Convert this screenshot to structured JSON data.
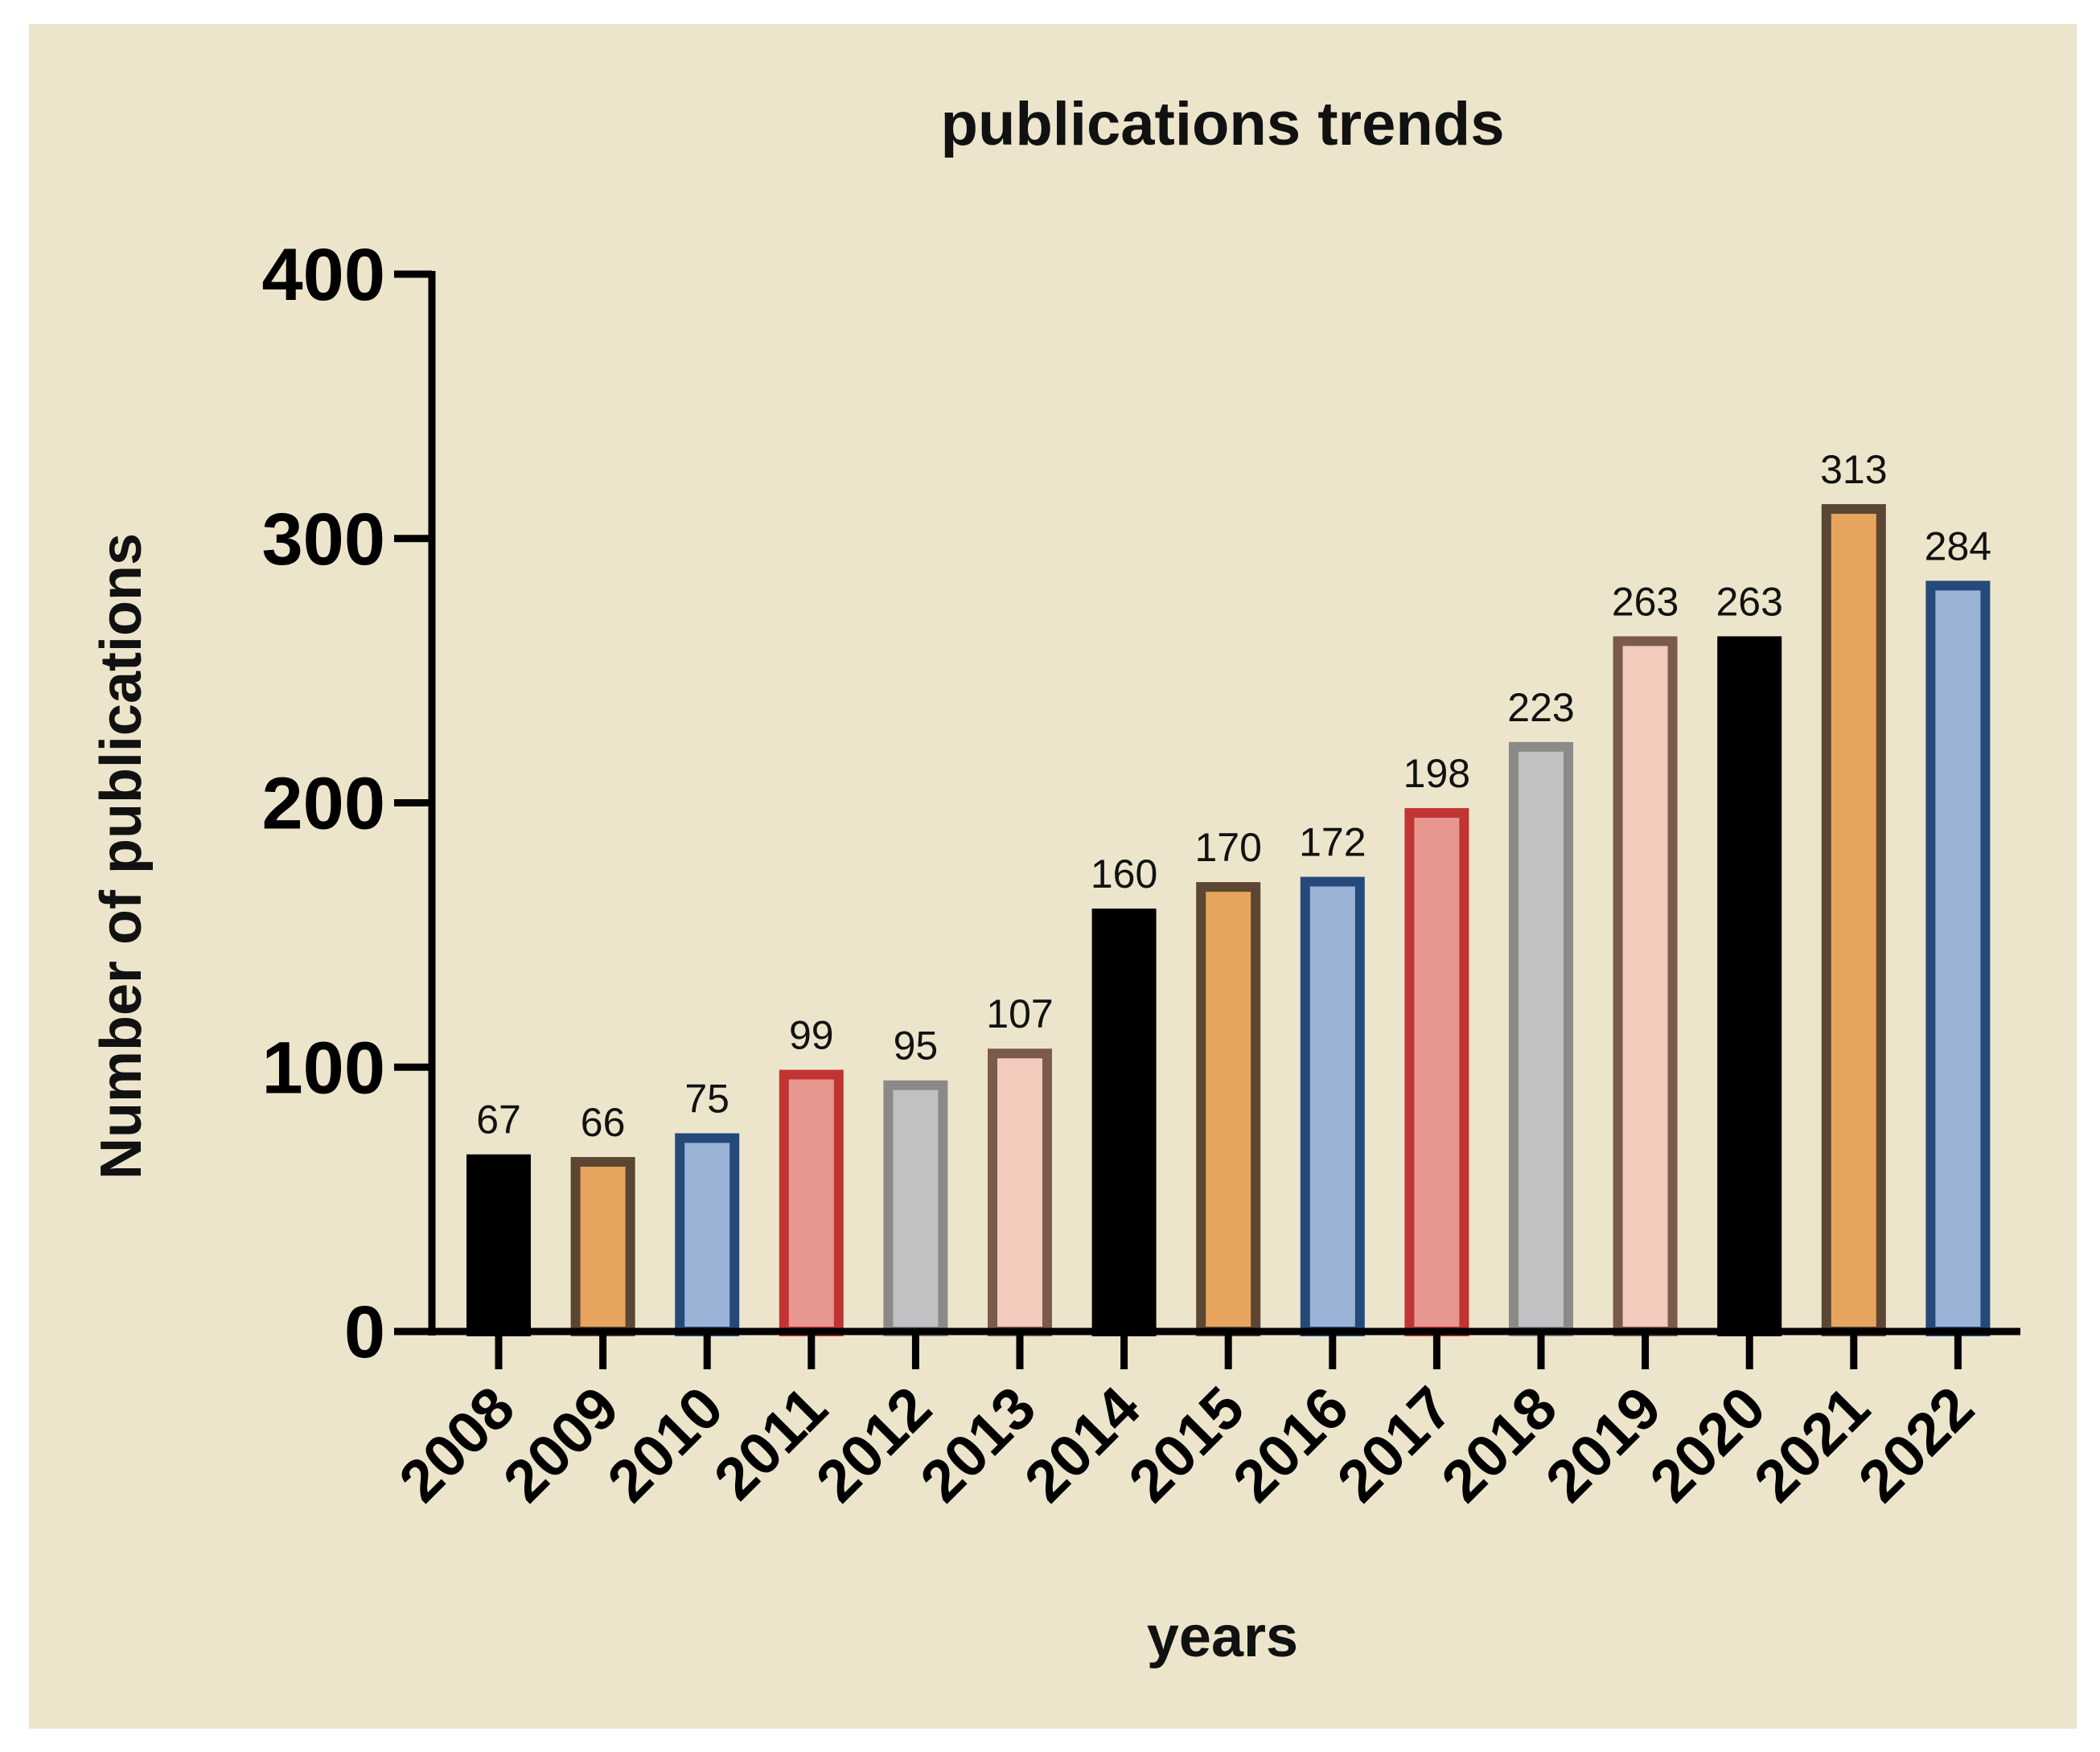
{
  "colors": {
    "panel_background": "#ECE5CB",
    "axis": "#000000"
  },
  "chart_data": {
    "type": "bar",
    "title": "publications trends",
    "xlabel": "years",
    "ylabel": "Number of publications",
    "ylim": [
      0,
      400
    ],
    "yticks": [
      "0",
      "100",
      "200",
      "300",
      "400"
    ],
    "grid": false,
    "legend": "none",
    "categories": [
      "2008",
      "2009",
      "2010",
      "2011",
      "2012",
      "2013",
      "2014",
      "2015",
      "2016",
      "2017",
      "2018",
      "2019",
      "2020",
      "2021",
      "2022"
    ],
    "values": [
      67,
      66,
      75,
      99,
      95,
      107,
      160,
      170,
      172,
      198,
      223,
      263,
      263,
      313,
      284
    ],
    "bar_fill_colors": [
      "#000000",
      "#E6A45E",
      "#9AB3D6",
      "#E89690",
      "#BFC1C3",
      "#F2CBBD",
      "#000000",
      "#E6A45E",
      "#9AB3D6",
      "#E89690",
      "#BFC1C3",
      "#F2CBBD",
      "#000000",
      "#E6A45E",
      "#9AB3D6"
    ],
    "bar_edge_colors": [
      "#000000",
      "#5A4632",
      "#254A7A",
      "#C13434",
      "#8A8A88",
      "#7B5A4B",
      "#000000",
      "#5A4632",
      "#254A7A",
      "#C13434",
      "#8A8A88",
      "#7B5A4B",
      "#000000",
      "#5A4632",
      "#254A7A"
    ]
  }
}
